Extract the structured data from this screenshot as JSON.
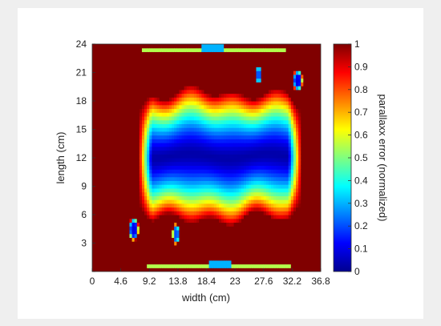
{
  "chart_data": {
    "type": "heatmap",
    "title": "",
    "xlabel": "width (cm)",
    "ylabel": "length (cm)",
    "colorbar_label": "parallaxx error (normalized)",
    "xlim": [
      0,
      36.8
    ],
    "ylim": [
      0,
      24
    ],
    "color_range": [
      0,
      1
    ],
    "colormap": "jet",
    "grid": false,
    "x_ticks": [
      0,
      4.6,
      9.2,
      13.8,
      18.4,
      23,
      27.6,
      32.2,
      36.8
    ],
    "x_tick_labels": [
      "0",
      "4.6",
      "9.2",
      "13.8",
      "18.4",
      "23",
      "27.6",
      "32.2",
      "36.8"
    ],
    "y_ticks": [
      0,
      3,
      6,
      9,
      12,
      15,
      18,
      21,
      24
    ],
    "y_tick_labels": [
      "",
      "3",
      "6",
      "9",
      "12",
      "15",
      "18",
      "21",
      "24"
    ],
    "colorbar_ticks": [
      0,
      0.1,
      0.2,
      0.3,
      0.4,
      0.5,
      0.6,
      0.7,
      0.8,
      0.9,
      1
    ],
    "colorbar_tick_labels": [
      "0",
      "0.1",
      "0.2",
      "0.3",
      "0.4",
      "0.5",
      "0.6",
      "0.7",
      "0.8",
      "0.9",
      "1"
    ],
    "background_value": 1.0,
    "field": {
      "x_range": [
        7.4,
        33.8
      ],
      "center_y": 12.2,
      "half_width_y": 6.6
    },
    "blobs": [
      {
        "x": 6.7,
        "y": 4.5,
        "rx": 0.8,
        "ry": 1.2,
        "value": 0.1
      },
      {
        "x": 13.5,
        "y": 4.0,
        "rx": 0.6,
        "ry": 1.1,
        "value": 0.2
      },
      {
        "x": 26.8,
        "y": 20.8,
        "rx": 0.6,
        "ry": 1.0,
        "value": 0.2
      },
      {
        "x": 33.1,
        "y": 20.2,
        "rx": 0.8,
        "ry": 1.1,
        "value": 0.1
      }
    ],
    "edge_strips": [
      {
        "x": [
          8,
          31
        ],
        "y": 23.5,
        "value": 0.3
      },
      {
        "x": [
          9,
          32
        ],
        "y": 0.7,
        "value": 0.3
      }
    ]
  }
}
